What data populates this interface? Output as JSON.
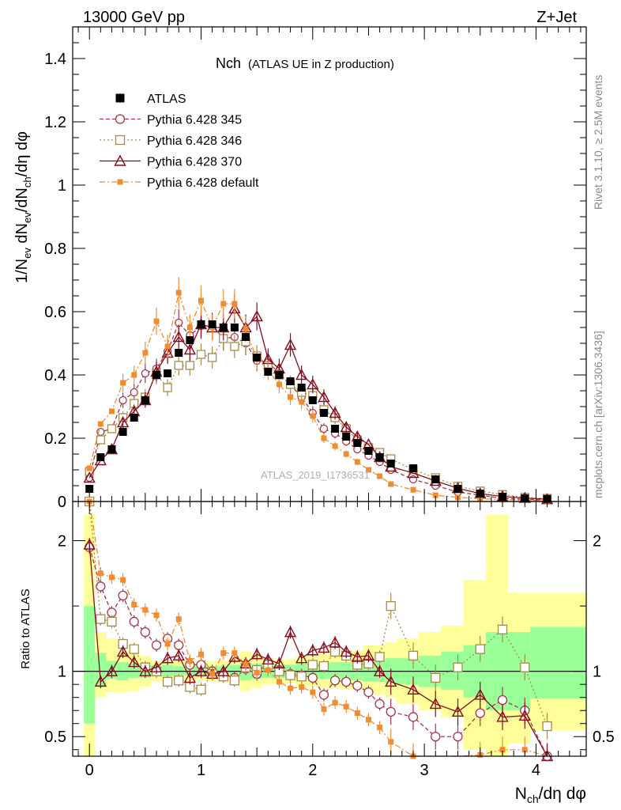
{
  "header": {
    "left": "13000 GeV pp",
    "right": "Z+Jet"
  },
  "plot_title": {
    "main": "Nch",
    "sub": "(ATLAS UE in Z production)"
  },
  "side_labels": {
    "rivet": "Rivet 3.1.10, ≥ 2.5M events",
    "mcplots": "mcplots.cern.ch [arXiv:1306.3436]"
  },
  "watermark": "ATLAS_2019_I1736531",
  "colors": {
    "data": "#000000",
    "p345": "#a8344e",
    "p346": "#a88a48",
    "p370": "#8b0a1e",
    "pdef": "#f28c30",
    "band_inner": "#99ff99",
    "band_outer": "#ffff99"
  },
  "chart_data": [
    {
      "type": "scatter",
      "panel": "main",
      "ylabel": "1/N_ev dN_ev/dN_ch/dη dφ",
      "xlim": [
        -0.15,
        4.45
      ],
      "ylim": [
        0,
        1.5
      ],
      "yticks": [
        "0",
        "0.2",
        "0.4",
        "0.6",
        "0.8",
        "1",
        "1.2",
        "1.4"
      ],
      "x": [
        0.0,
        0.1,
        0.2,
        0.3,
        0.4,
        0.5,
        0.6,
        0.7,
        0.8,
        0.9,
        1.0,
        1.1,
        1.2,
        1.3,
        1.4,
        1.5,
        1.6,
        1.7,
        1.8,
        1.9,
        2.0,
        2.1,
        2.2,
        2.3,
        2.4,
        2.5,
        2.6,
        2.7,
        2.9,
        3.1,
        3.3,
        3.5,
        3.7,
        3.9,
        4.1
      ],
      "series": [
        {
          "name": "ATLAS",
          "key": "data",
          "values": [
            0.04,
            0.14,
            0.165,
            0.22,
            0.265,
            0.32,
            0.4,
            0.405,
            0.47,
            0.51,
            0.56,
            0.56,
            0.55,
            0.55,
            0.52,
            0.455,
            0.41,
            0.4,
            0.38,
            0.36,
            0.32,
            0.28,
            0.23,
            0.205,
            0.185,
            0.16,
            0.14,
            0.12,
            0.105,
            0.07,
            0.04,
            0.025,
            0.015,
            0.01,
            0.008
          ]
        },
        {
          "name": "Pythia 6.428 345",
          "key": "p345",
          "values": [
            0.075,
            0.22,
            0.23,
            0.32,
            0.345,
            0.405,
            0.42,
            0.475,
            0.565,
            0.525,
            0.555,
            0.555,
            0.515,
            0.52,
            0.5,
            0.445,
            0.44,
            0.405,
            0.37,
            0.33,
            0.28,
            0.23,
            0.215,
            0.19,
            0.165,
            0.145,
            0.125,
            0.1,
            0.07,
            0.05,
            0.03,
            0.02,
            0.01,
            0.007,
            0.004
          ]
        },
        {
          "name": "Pythia 6.428 346",
          "key": "p346",
          "values": [
            0.095,
            0.195,
            0.23,
            0.265,
            0.31,
            0.33,
            0.4,
            0.36,
            0.43,
            0.43,
            0.465,
            0.455,
            0.515,
            0.49,
            0.505,
            0.46,
            0.43,
            0.4,
            0.37,
            0.345,
            0.335,
            0.29,
            0.265,
            0.23,
            0.195,
            0.17,
            0.155,
            0.135,
            0.1,
            0.075,
            0.048,
            0.033,
            0.022,
            0.013,
            0.01
          ]
        },
        {
          "name": "Pythia 6.428 370",
          "key": "p370",
          "values": [
            0.075,
            0.13,
            0.165,
            0.25,
            0.285,
            0.32,
            0.41,
            0.47,
            0.52,
            0.48,
            0.56,
            0.55,
            0.55,
            0.61,
            0.55,
            0.585,
            0.45,
            0.42,
            0.495,
            0.4,
            0.37,
            0.33,
            0.28,
            0.235,
            0.205,
            0.18,
            0.14,
            0.11,
            0.09,
            0.065,
            0.042,
            0.025,
            0.016,
            0.011,
            0.007
          ]
        },
        {
          "name": "Pythia 6.428 default",
          "key": "pdef",
          "values": [
            0.105,
            0.245,
            0.285,
            0.375,
            0.4,
            0.47,
            0.57,
            0.49,
            0.66,
            0.55,
            0.635,
            0.55,
            0.625,
            0.625,
            0.545,
            0.45,
            0.415,
            0.37,
            0.33,
            0.315,
            0.27,
            0.2,
            0.175,
            0.15,
            0.125,
            0.1,
            0.08,
            0.055,
            0.037,
            0.02,
            0.013,
            0.009,
            0.006,
            0.004,
            0.002
          ]
        }
      ]
    },
    {
      "type": "line",
      "panel": "ratio",
      "ylabel": "Ratio to ATLAS",
      "xlabel": "N_ch/dη dφ",
      "xlim": [
        -0.15,
        4.45
      ],
      "ylim": [
        0.35,
        2.3
      ],
      "yticks": [
        "0.5",
        "1",
        "2"
      ],
      "xticks": [
        "0",
        "1",
        "2",
        "3",
        "4"
      ],
      "bands": {
        "edges": [
          -0.05,
          0.05,
          0.15,
          0.25,
          0.35,
          0.45,
          0.55,
          0.65,
          0.75,
          0.85,
          0.95,
          1.05,
          1.15,
          1.25,
          1.35,
          1.45,
          1.55,
          1.65,
          1.75,
          1.85,
          1.95,
          2.05,
          2.15,
          2.25,
          2.35,
          2.45,
          2.55,
          2.65,
          2.75,
          2.95,
          3.15,
          3.35,
          3.55,
          3.75,
          3.95,
          4.45
        ],
        "inner": [
          [
            0.6,
            1.5
          ],
          [
            0.88,
            1.14
          ],
          [
            0.94,
            1.08
          ],
          [
            0.93,
            1.07
          ],
          [
            0.95,
            1.06
          ],
          [
            0.95,
            1.05
          ],
          [
            0.96,
            1.05
          ],
          [
            0.96,
            1.05
          ],
          [
            0.97,
            1.04
          ],
          [
            0.97,
            1.04
          ],
          [
            0.96,
            1.04
          ],
          [
            0.96,
            1.04
          ],
          [
            0.96,
            1.04
          ],
          [
            0.96,
            1.05
          ],
          [
            0.93,
            1.06
          ],
          [
            0.94,
            1.06
          ],
          [
            0.95,
            1.05
          ],
          [
            0.95,
            1.05
          ],
          [
            0.95,
            1.05
          ],
          [
            0.94,
            1.06
          ],
          [
            0.94,
            1.06
          ],
          [
            0.94,
            1.07
          ],
          [
            0.94,
            1.07
          ],
          [
            0.93,
            1.07
          ],
          [
            0.93,
            1.08
          ],
          [
            0.92,
            1.08
          ],
          [
            0.92,
            1.09
          ],
          [
            0.91,
            1.1
          ],
          [
            0.9,
            1.1
          ],
          [
            0.88,
            1.12
          ],
          [
            0.86,
            1.15
          ],
          [
            0.8,
            1.2
          ],
          [
            0.7,
            1.3
          ],
          [
            0.7,
            1.3
          ],
          [
            0.79,
            1.34
          ]
        ],
        "outer": [
          [
            0.35,
            2.2
          ],
          [
            0.8,
            1.3
          ],
          [
            0.84,
            1.25
          ],
          [
            0.84,
            1.16
          ],
          [
            0.85,
            1.15
          ],
          [
            0.88,
            1.12
          ],
          [
            0.92,
            1.08
          ],
          [
            0.92,
            1.08
          ],
          [
            0.92,
            1.08
          ],
          [
            0.92,
            1.08
          ],
          [
            0.93,
            1.07
          ],
          [
            0.92,
            1.08
          ],
          [
            0.92,
            1.08
          ],
          [
            0.91,
            1.1
          ],
          [
            0.85,
            1.15
          ],
          [
            0.87,
            1.13
          ],
          [
            0.9,
            1.1
          ],
          [
            0.91,
            1.09
          ],
          [
            0.91,
            1.09
          ],
          [
            0.88,
            1.12
          ],
          [
            0.88,
            1.12
          ],
          [
            0.87,
            1.14
          ],
          [
            0.87,
            1.14
          ],
          [
            0.86,
            1.15
          ],
          [
            0.86,
            1.16
          ],
          [
            0.83,
            1.2
          ],
          [
            0.82,
            1.2
          ],
          [
            0.8,
            1.22
          ],
          [
            0.75,
            1.25
          ],
          [
            0.7,
            1.3
          ],
          [
            0.65,
            1.35
          ],
          [
            0.4,
            1.7
          ],
          [
            0.35,
            2.2
          ],
          [
            0.45,
            1.6
          ],
          [
            0.55,
            1.6
          ]
        ]
      },
      "series": [
        {
          "name": "Pythia 6.428 345",
          "key": "p345",
          "values": [
            1.95,
            1.65,
            1.45,
            1.58,
            1.38,
            1.3,
            1.2,
            1.25,
            1.2,
            1.05,
            1.05,
            1.0,
            0.97,
            0.95,
            1.02,
            0.98,
            1.07,
            1.01,
            0.98,
            0.97,
            0.95,
            0.82,
            0.93,
            0.92,
            0.89,
            0.84,
            0.75,
            0.69,
            0.65,
            0.5,
            0.5,
            0.68,
            0.78,
            0.7,
            0.35
          ]
        },
        {
          "name": "Pythia 6.428 346",
          "key": "p346",
          "values": [
            2.3,
            1.4,
            1.38,
            1.21,
            1.17,
            1.03,
            1.0,
            0.92,
            0.93,
            0.88,
            0.86,
            0.98,
            0.96,
            0.93,
            1.03,
            1.01,
            1.05,
            1.0,
            0.97,
            0.96,
            1.05,
            1.04,
            1.15,
            1.12,
            1.05,
            1.06,
            1.11,
            1.5,
            1.12,
            0.95,
            1.03,
            1.17,
            1.32,
            1.03,
            0.58
          ]
        },
        {
          "name": "Pythia 6.428 370",
          "key": "p370",
          "values": [
            1.97,
            0.92,
            1.0,
            1.15,
            1.07,
            1.0,
            1.03,
            1.1,
            1.12,
            0.95,
            1.0,
            0.98,
            1.0,
            1.11,
            1.06,
            1.13,
            1.09,
            1.06,
            1.3,
            1.1,
            1.16,
            1.18,
            1.22,
            1.15,
            1.11,
            1.12,
            1.0,
            0.92,
            0.86,
            0.75,
            0.69,
            0.82,
            0.65,
            0.66,
            0.35
          ]
        },
        {
          "name": "Pythia 6.428 default",
          "key": "pdef",
          "values": [
            2.3,
            1.75,
            1.72,
            1.7,
            1.51,
            1.47,
            1.43,
            1.21,
            1.4,
            1.08,
            1.13,
            0.98,
            1.14,
            1.14,
            1.05,
            0.99,
            1.01,
            0.92,
            0.87,
            0.88,
            0.84,
            0.71,
            0.76,
            0.73,
            0.68,
            0.63,
            0.57,
            0.46,
            0.35,
            0.3,
            0.33,
            0.36,
            0.4,
            0.4,
            0.25
          ]
        }
      ]
    }
  ]
}
